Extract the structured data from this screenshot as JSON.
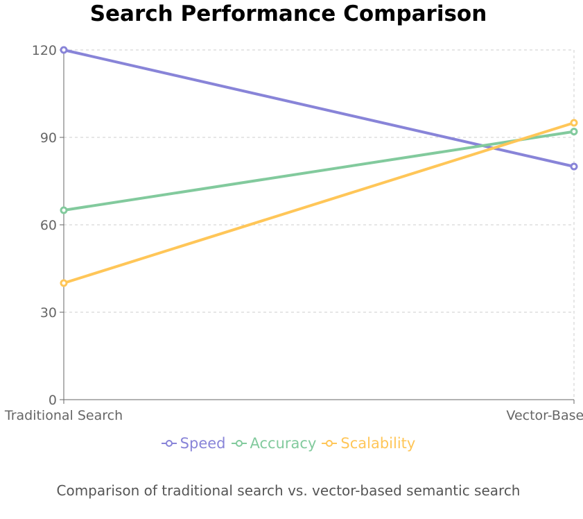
{
  "chart_data": {
    "type": "line",
    "title": "Search Performance Comparison",
    "categories": [
      "Traditional Search",
      "Vector-Based Search"
    ],
    "series": [
      {
        "name": "Speed",
        "values": [
          120,
          80
        ],
        "color": "#8884d8"
      },
      {
        "name": "Accuracy",
        "values": [
          65,
          92
        ],
        "color": "#82ca9d"
      },
      {
        "name": "Scalability",
        "values": [
          40,
          95
        ],
        "color": "#ffc658"
      }
    ],
    "ylim": [
      0,
      120
    ],
    "yticks": [
      0,
      30,
      60,
      90,
      120
    ],
    "grid": true,
    "legend": "bottom",
    "caption": "Comparison of traditional search vs. vector-based semantic search"
  }
}
